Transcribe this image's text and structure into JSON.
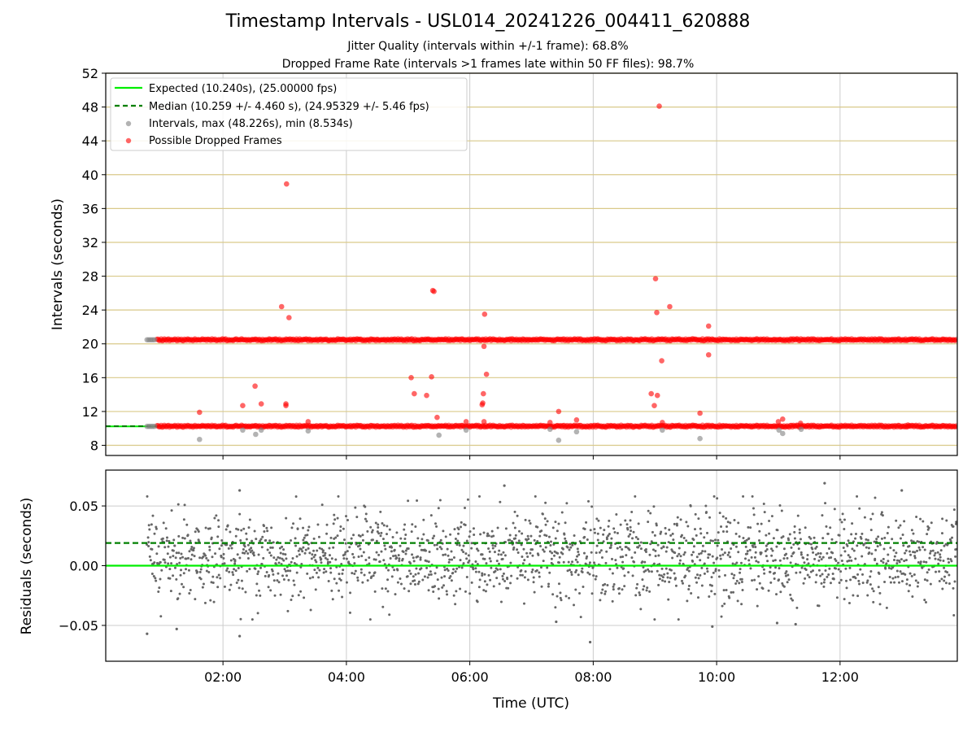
{
  "figure": {
    "title": "Timestamp Intervals - USL014_20241226_004411_620888",
    "subtitle_jitter": "Jitter Quality (intervals within +/-1 frame): 68.8%",
    "subtitle_dropped": "Dropped Frame Rate (intervals >1 frames late within 50 FF files): 98.7%"
  },
  "colors": {
    "expected": "#00ee00",
    "median": "#008000",
    "intervals": "#808080",
    "dropped": "#ff0000",
    "hgrid_top": "#d9c98a",
    "grid": "#cccccc",
    "residual_points": "#666666"
  },
  "chart_data": [
    {
      "type": "scatter",
      "panel": "intervals",
      "xlabel": "",
      "ylabel": "Intervals (seconds)",
      "xlim": [
        0.1,
        13.9
      ],
      "ylim": [
        6.8,
        52
      ],
      "x_unit": "hours UTC",
      "yticks": [
        8,
        12,
        16,
        20,
        24,
        28,
        32,
        36,
        40,
        44,
        48,
        52
      ],
      "grid": true,
      "legend_position": "top-left",
      "legend": [
        {
          "label": "Expected (10.240s), (25.00000 fps)",
          "kind": "solid-line",
          "color_key": "expected"
        },
        {
          "label": "Median (10.259 +/- 4.460 s), (24.95329 +/- 5.46 fps)",
          "kind": "dashed-line",
          "color_key": "median"
        },
        {
          "label": "Intervals, max (48.226s), min (8.534s)",
          "kind": "marker",
          "color_key": "intervals"
        },
        {
          "label": "Possible Dropped Frames",
          "kind": "marker",
          "color_key": "dropped"
        }
      ],
      "expected_value": 10.24,
      "median_value": 10.259,
      "bands": [
        {
          "name": "Possible Dropped Frames",
          "x_start": 0.93,
          "x_end": 13.9,
          "y": 20.48
        },
        {
          "name": "Possible Dropped Frames",
          "x_start": 0.93,
          "x_end": 13.9,
          "y": 10.26
        }
      ],
      "interval_points": [
        [
          0.77,
          20.48
        ],
        [
          0.8,
          20.48
        ],
        [
          0.83,
          20.48
        ],
        [
          0.86,
          20.48
        ],
        [
          0.89,
          20.48
        ],
        [
          0.77,
          10.24
        ],
        [
          0.8,
          10.24
        ],
        [
          0.83,
          10.24
        ],
        [
          0.86,
          10.24
        ],
        [
          0.89,
          10.24
        ],
        [
          1.62,
          8.7
        ],
        [
          2.32,
          9.8
        ],
        [
          2.53,
          9.3
        ],
        [
          2.62,
          9.8
        ],
        [
          3.38,
          9.7
        ],
        [
          5.5,
          9.2
        ],
        [
          5.94,
          9.8
        ],
        [
          7.3,
          9.9
        ],
        [
          7.44,
          8.6
        ],
        [
          7.73,
          9.6
        ],
        [
          9.12,
          9.8
        ],
        [
          9.73,
          8.8
        ],
        [
          11.01,
          9.8
        ],
        [
          11.07,
          9.4
        ],
        [
          11.37,
          9.9
        ]
      ],
      "dropped_points": [
        [
          1.62,
          11.9
        ],
        [
          2.32,
          12.7
        ],
        [
          2.52,
          15.0
        ],
        [
          2.62,
          12.9
        ],
        [
          2.95,
          24.4
        ],
        [
          3.02,
          12.7
        ],
        [
          3.02,
          12.9
        ],
        [
          3.03,
          38.9
        ],
        [
          3.07,
          23.1
        ],
        [
          3.38,
          10.8
        ],
        [
          5.05,
          16.0
        ],
        [
          5.1,
          14.1
        ],
        [
          5.3,
          13.9
        ],
        [
          5.38,
          16.1
        ],
        [
          5.4,
          26.3
        ],
        [
          5.42,
          26.2
        ],
        [
          5.47,
          11.3
        ],
        [
          5.94,
          10.8
        ],
        [
          6.2,
          12.8
        ],
        [
          6.21,
          13.0
        ],
        [
          6.22,
          14.1
        ],
        [
          6.23,
          10.8
        ],
        [
          6.23,
          19.7
        ],
        [
          6.24,
          23.5
        ],
        [
          6.27,
          16.4
        ],
        [
          7.3,
          10.7
        ],
        [
          7.44,
          12.0
        ],
        [
          7.73,
          11.0
        ],
        [
          8.94,
          14.1
        ],
        [
          8.99,
          12.7
        ],
        [
          9.01,
          27.7
        ],
        [
          9.03,
          23.7
        ],
        [
          9.04,
          13.9
        ],
        [
          9.07,
          48.1
        ],
        [
          9.11,
          18.0
        ],
        [
          9.12,
          10.7
        ],
        [
          9.24,
          24.4
        ],
        [
          9.73,
          11.8
        ],
        [
          9.87,
          22.1
        ],
        [
          9.87,
          18.7
        ],
        [
          11.0,
          10.8
        ],
        [
          11.07,
          11.1
        ],
        [
          11.36,
          10.6
        ],
        [
          13.1,
          10.4
        ]
      ]
    },
    {
      "type": "scatter",
      "panel": "residuals",
      "xlabel": "Time (UTC)",
      "ylabel": "Residuals (seconds)",
      "xlim": [
        0.1,
        13.9
      ],
      "ylim": [
        -0.08,
        0.08
      ],
      "xticks": [
        2,
        4,
        6,
        8,
        10,
        12
      ],
      "xtick_labels": [
        "02:00",
        "04:00",
        "06:00",
        "08:00",
        "10:00",
        "12:00"
      ],
      "yticks": [
        -0.05,
        0.0,
        0.05
      ],
      "ytick_labels": [
        "−0.05",
        "0.00",
        "0.05"
      ],
      "grid": true,
      "zero_line": 0.0,
      "median_line": 0.019,
      "points_x_range": [
        0.77,
        13.9
      ],
      "points_mean": 0.007,
      "points_spread": 0.022,
      "outliers": [
        [
          0.77,
          -0.057
        ],
        [
          1.25,
          -0.053
        ],
        [
          2.27,
          -0.059
        ],
        [
          2.27,
          0.063
        ],
        [
          6.56,
          0.067
        ],
        [
          7.95,
          -0.064
        ],
        [
          11.75,
          0.069
        ],
        [
          13.0,
          0.063
        ],
        [
          9.93,
          -0.051
        ],
        [
          10.98,
          -0.048
        ],
        [
          11.28,
          -0.049
        ],
        [
          7.4,
          -0.047
        ]
      ]
    }
  ]
}
